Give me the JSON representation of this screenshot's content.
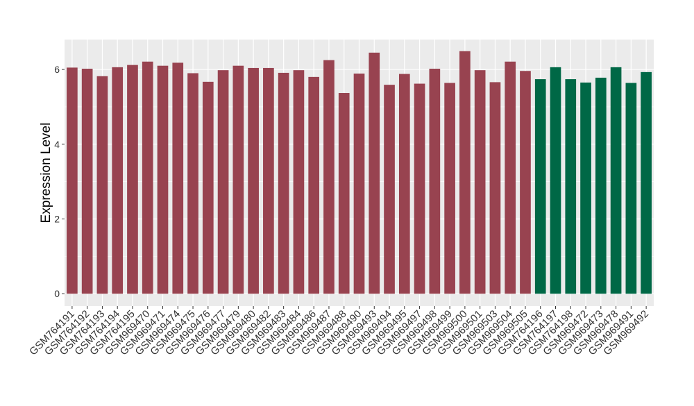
{
  "chart_data": {
    "type": "bar",
    "y_label": "Expression Level",
    "categories": [
      "GSM764191",
      "GSM764192",
      "GSM764193",
      "GSM764194",
      "GSM764195",
      "GSM969470",
      "GSM969471",
      "GSM969474",
      "GSM969475",
      "GSM969476",
      "GSM969477",
      "GSM969479",
      "GSM969480",
      "GSM969482",
      "GSM969483",
      "GSM969484",
      "GSM969486",
      "GSM969487",
      "GSM969488",
      "GSM969490",
      "GSM969493",
      "GSM969494",
      "GSM969495",
      "GSM969497",
      "GSM969498",
      "GSM969499",
      "GSM969500",
      "GSM969501",
      "GSM969503",
      "GSM969504",
      "GSM969505",
      "GSM764196",
      "GSM764197",
      "GSM764198",
      "GSM969472",
      "GSM969473",
      "GSM969478",
      "GSM969491",
      "GSM969492"
    ],
    "values": [
      6.05,
      6.02,
      5.82,
      6.06,
      6.12,
      6.21,
      6.1,
      6.18,
      5.9,
      5.67,
      5.98,
      6.1,
      6.04,
      6.04,
      5.91,
      5.98,
      5.8,
      6.25,
      5.37,
      5.89,
      6.45,
      5.59,
      5.88,
      5.62,
      6.02,
      5.64,
      6.49,
      5.98,
      5.66,
      6.21,
      5.96,
      5.74,
      6.06,
      5.74,
      5.65,
      5.78,
      6.06,
      5.64,
      5.93
    ],
    "colors": [
      "#984350",
      "#984350",
      "#984350",
      "#984350",
      "#984350",
      "#984350",
      "#984350",
      "#984350",
      "#984350",
      "#984350",
      "#984350",
      "#984350",
      "#984350",
      "#984350",
      "#984350",
      "#984350",
      "#984350",
      "#984350",
      "#984350",
      "#984350",
      "#984350",
      "#984350",
      "#984350",
      "#984350",
      "#984350",
      "#984350",
      "#984350",
      "#984350",
      "#984350",
      "#984350",
      "#984350",
      "#006846",
      "#006846",
      "#006846",
      "#006846",
      "#006846",
      "#006846",
      "#006846",
      "#006846"
    ],
    "ylim": [
      -0.33,
      6.8
    ],
    "yticks": [
      0,
      2,
      4,
      6
    ],
    "grid": true
  }
}
